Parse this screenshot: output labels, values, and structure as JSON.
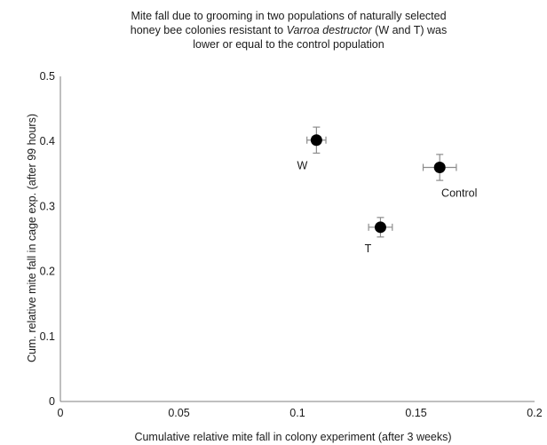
{
  "chart_data": {
    "type": "scatter",
    "title_lines": [
      "Mite fall due to grooming in two populations of naturally selected",
      "honey bee colonies resistant to ",
      "Varroa destructor",
      " (W and T) was",
      "lower or equal to the control population"
    ],
    "xlabel": "Cumulative relative mite fall in colony experiment (after 3 weeks)",
    "ylabel": "Cum. relative mite fall in cage exp. (after 99 hours)",
    "xlim": [
      0,
      0.2
    ],
    "ylim": [
      0,
      0.5
    ],
    "x_ticks": [
      0,
      0.05,
      0.1,
      0.15,
      0.2
    ],
    "x_tick_labels": [
      "0",
      "0.05",
      "0.1",
      "0.15",
      "0.2"
    ],
    "y_ticks": [
      0,
      0.1,
      0.2,
      0.3,
      0.4,
      0.5
    ],
    "y_tick_labels": [
      "0",
      "0.1",
      "0.2",
      "0.3",
      "0.4",
      "0.5"
    ],
    "grid": false,
    "marker_color": "#000000",
    "points": [
      {
        "label": "W",
        "x": 0.108,
        "y": 0.402,
        "x_err": 0.004,
        "y_err": 0.02
      },
      {
        "label": "T",
        "x": 0.135,
        "y": 0.268,
        "x_err": 0.005,
        "y_err": 0.015
      },
      {
        "label": "Control",
        "x": 0.16,
        "y": 0.36,
        "x_err": 0.007,
        "y_err": 0.02
      }
    ]
  }
}
